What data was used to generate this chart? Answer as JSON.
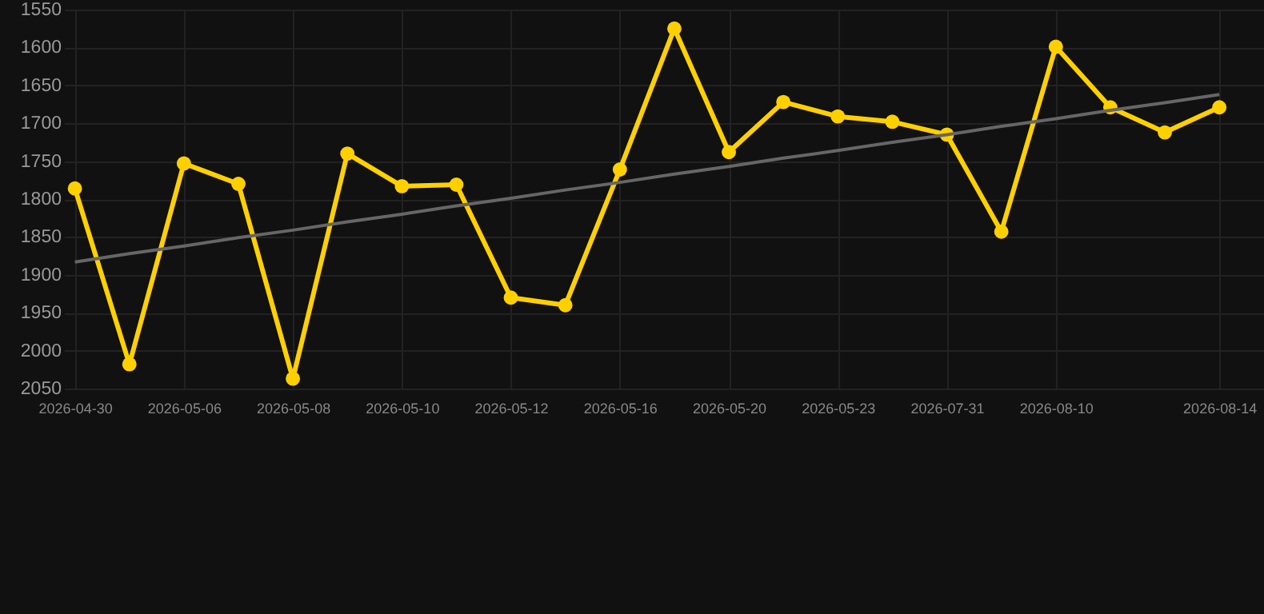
{
  "chart_data": {
    "type": "line",
    "categories": [
      "2026-04-30",
      null,
      "2026-05-06",
      null,
      "2026-05-08",
      null,
      "2026-05-10",
      null,
      "2026-05-12",
      null,
      "2026-05-16",
      null,
      "2026-05-20",
      null,
      "2026-05-23",
      null,
      "2026-07-31",
      null,
      "2026-08-10",
      null,
      null,
      "2026-08-14"
    ],
    "series": [
      {
        "color": "#ffd000",
        "values": [
          1786,
          2018,
          1753,
          1780,
          2037,
          1740,
          1783,
          1781,
          1930,
          1940,
          1761,
          1575,
          1738,
          1672,
          1691,
          1698,
          1715,
          1843,
          1599,
          1679,
          1712,
          1679
        ]
      },
      {
        "type": "line",
        "color": "#666666",
        "marker": "none",
        "values": [
          1883,
          1872,
          1862,
          1851,
          1841,
          1830,
          1820,
          1809,
          1799,
          1788,
          1778,
          1767,
          1757,
          1746,
          1736,
          1725,
          1715,
          1704,
          1694,
          1683,
          1673,
          1662
        ]
      }
    ],
    "ylim": [
      2050,
      1550
    ],
    "yticks": [
      1550,
      1600,
      1650,
      1700,
      1750,
      1800,
      1850,
      1900,
      1950,
      2000,
      2050
    ],
    "grid": true,
    "marker": "circle",
    "line_style": "solid"
  }
}
